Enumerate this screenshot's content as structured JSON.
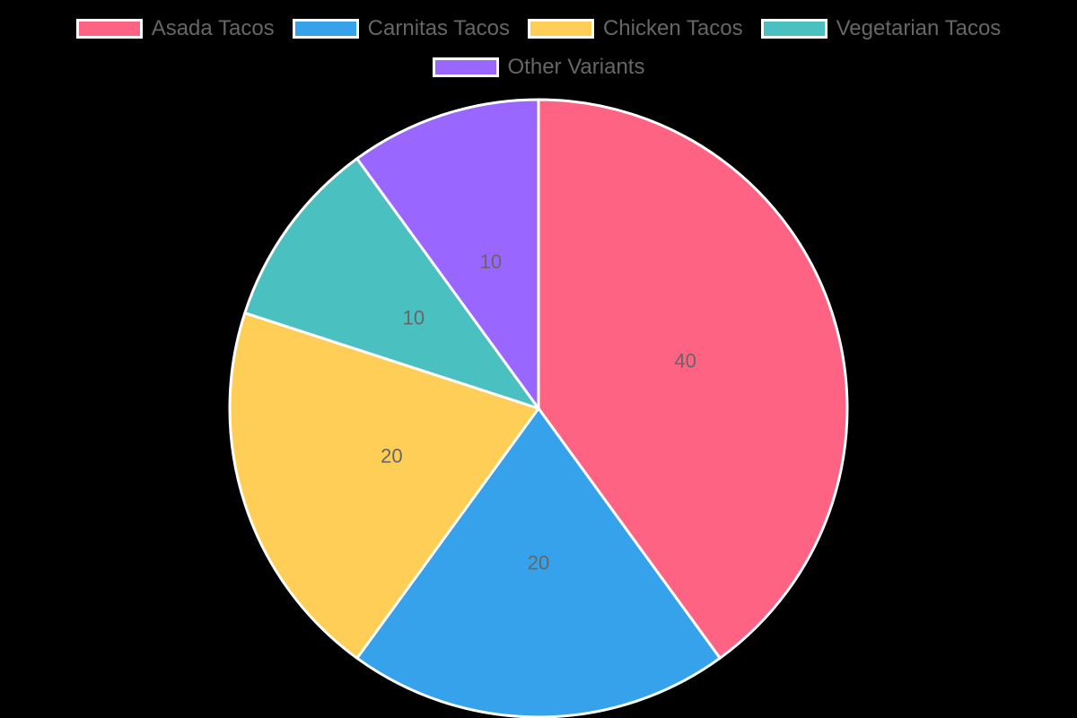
{
  "chart_data": {
    "type": "pie",
    "title": "",
    "categories": [
      "Asada Tacos",
      "Carnitas Tacos",
      "Chicken Tacos",
      "Vegetarian Tacos",
      "Other Variants"
    ],
    "values": [
      40,
      20,
      20,
      10,
      10
    ],
    "colors": [
      "#FF6384",
      "#36A2EB",
      "#FFCE56",
      "#4BC0C0",
      "#9966FF"
    ],
    "data_labels": [
      "40",
      "20",
      "20",
      "10",
      "10"
    ],
    "legend_position": "top",
    "border_color": "#FFFFFF"
  },
  "legend": {
    "items": [
      {
        "label": "Asada Tacos",
        "color": "#FF6384"
      },
      {
        "label": "Carnitas Tacos",
        "color": "#36A2EB"
      },
      {
        "label": "Chicken Tacos",
        "color": "#FFCE56"
      },
      {
        "label": "Vegetarian Tacos",
        "color": "#4BC0C0"
      },
      {
        "label": "Other Variants",
        "color": "#9966FF"
      }
    ]
  }
}
